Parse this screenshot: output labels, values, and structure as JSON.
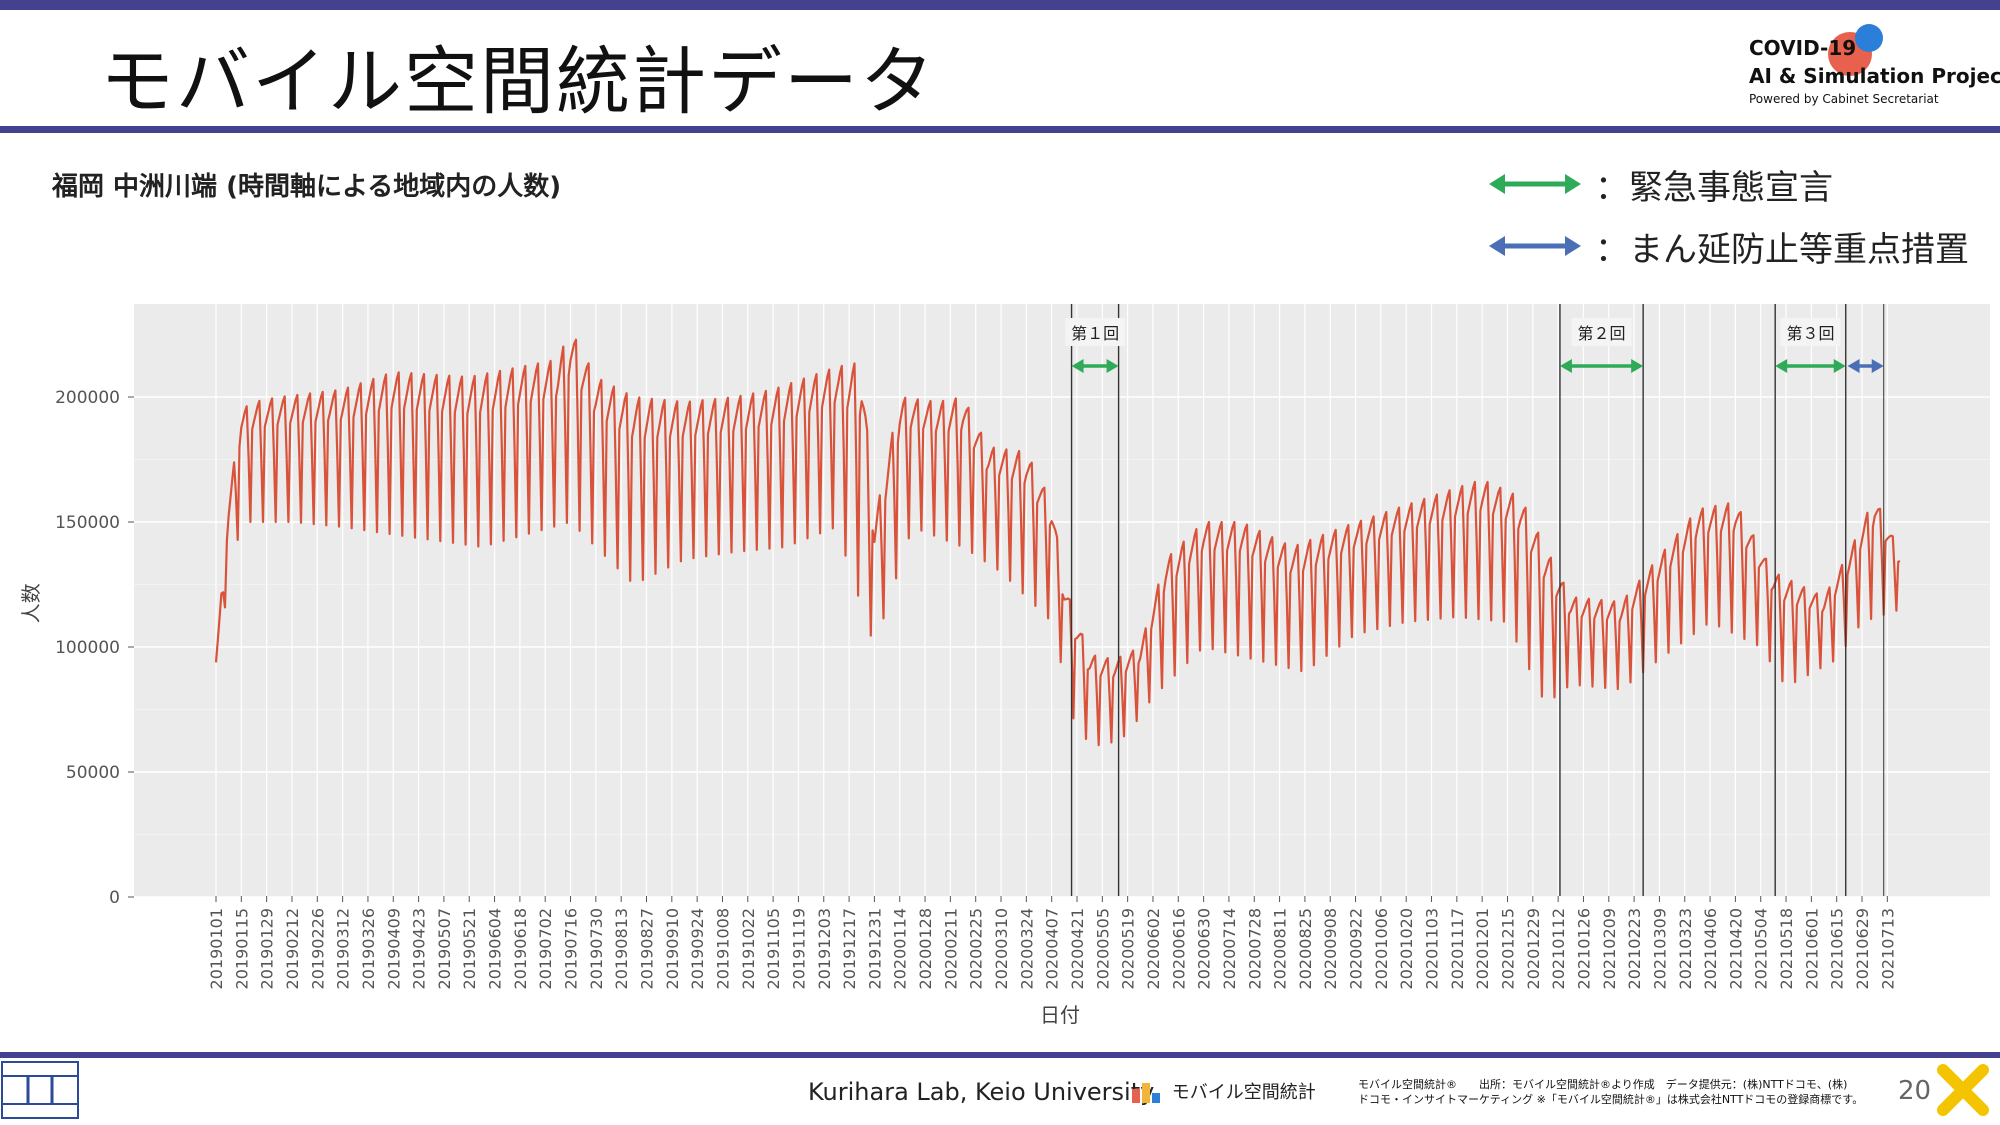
{
  "header": {
    "title": "モバイル空間統計データ",
    "logo": {
      "line1": "COVID-19",
      "line2": "AI & Simulation Project",
      "line3": "Powered by Cabinet Secretariat"
    }
  },
  "subtitle": "福岡 中洲川端 (時間軸による地域内の人数)",
  "legend": [
    {
      "label": "：緊急事態宣言",
      "color": "#2eaa59"
    },
    {
      "label": "：まん延防止等重点措置",
      "color": "#4a6fb5"
    }
  ],
  "footer": {
    "lab": "Kurihara Lab, Keio University",
    "mobile_logo": "モバイル空間統計",
    "note_line1": "モバイル空間統計®　　出所：モバイル空間統計®より作成　データ提供元：(株)NTTドコモ、(株)",
    "note_line2": "ドコモ・インサイトマーケティング ※「モバイル空間統計®」は株式会社NTTドコモの登録商標です。",
    "page_number": "20"
  },
  "chart_data": {
    "type": "line",
    "title": "",
    "xlabel": "日付",
    "ylabel": "人数",
    "ylim": [
      0,
      235000
    ],
    "yticks": [
      0,
      50000,
      100000,
      150000,
      200000
    ],
    "ytick_labels": [
      "0",
      "50000",
      "100000",
      "150000",
      "200000"
    ],
    "grid": true,
    "x_start": "20190101",
    "x_end": "20210720",
    "x_tick_labels": [
      "20190101",
      "20190115",
      "20190129",
      "20190212",
      "20190226",
      "20190312",
      "20190326",
      "20190409",
      "20190423",
      "20190507",
      "20190521",
      "20190604",
      "20190618",
      "20190702",
      "20190716",
      "20190730",
      "20190813",
      "20190827",
      "20190910",
      "20190924",
      "20191008",
      "20191022",
      "20191105",
      "20191119",
      "20191203",
      "20191217",
      "20191231",
      "20200114",
      "20200128",
      "20200211",
      "20200225",
      "20200310",
      "20200324",
      "20200407",
      "20200421",
      "20200505",
      "20200519",
      "20200602",
      "20200616",
      "20200630",
      "20200714",
      "20200728",
      "20200811",
      "20200825",
      "20200908",
      "20200922",
      "20201006",
      "20201020",
      "20201103",
      "20201117",
      "20201201",
      "20201215",
      "20201229",
      "20210112",
      "20210126",
      "20210209",
      "20210223",
      "20210309",
      "20210323",
      "20210406",
      "20210420",
      "20210504",
      "20210518",
      "20210601",
      "20210615",
      "20210629",
      "20210713"
    ],
    "series": [
      {
        "color": "#d9533b",
        "weekly_peaks": [
          [
            "20190101",
            94000
          ],
          [
            "20190108",
            158000
          ],
          [
            "20190115",
            195000
          ],
          [
            "20190122",
            198000
          ],
          [
            "20190205",
            200000
          ],
          [
            "20190312",
            203000
          ],
          [
            "20190409",
            210000
          ],
          [
            "20190521",
            208000
          ],
          [
            "20190618",
            212000
          ],
          [
            "20190709",
            215000
          ],
          [
            "20190716",
            227000
          ],
          [
            "20190730",
            208000
          ],
          [
            "20190820",
            200000
          ],
          [
            "20190917",
            198000
          ],
          [
            "20191015",
            200000
          ],
          [
            "20191105",
            203000
          ],
          [
            "20191210",
            212000
          ],
          [
            "20191224",
            214000
          ],
          [
            "20191231",
            150000
          ],
          [
            "20200114",
            200000
          ],
          [
            "20200204",
            198000
          ],
          [
            "20200218",
            200000
          ],
          [
            "20200303",
            180000
          ],
          [
            "20200324",
            178000
          ],
          [
            "20200407",
            158000
          ],
          [
            "20200414",
            125000
          ],
          [
            "20200428",
            97000
          ],
          [
            "20200512",
            95000
          ],
          [
            "20200526",
            100000
          ],
          [
            "20200609",
            135000
          ],
          [
            "20200630",
            150000
          ],
          [
            "20200721",
            150000
          ],
          [
            "20200818",
            140000
          ],
          [
            "20200915",
            148000
          ],
          [
            "20201013",
            155000
          ],
          [
            "20201110",
            162000
          ],
          [
            "20201201",
            167000
          ],
          [
            "20201222",
            160000
          ],
          [
            "20210105",
            140000
          ],
          [
            "20210119",
            120000
          ],
          [
            "20210216",
            118000
          ],
          [
            "20210302",
            130000
          ],
          [
            "20210330",
            155000
          ],
          [
            "20210420",
            158000
          ],
          [
            "20210511",
            130000
          ],
          [
            "20210608",
            120000
          ],
          [
            "20210622",
            138000
          ],
          [
            "20210706",
            160000
          ],
          [
            "20210720",
            138000
          ]
        ],
        "weekly_troughs": [
          [
            "20190101",
            93000
          ],
          [
            "20190108",
            125000
          ],
          [
            "20190115",
            150000
          ],
          [
            "20190212",
            150000
          ],
          [
            "20190312",
            148000
          ],
          [
            "20190409",
            145000
          ],
          [
            "20190528",
            140000
          ],
          [
            "20190716",
            150000
          ],
          [
            "20190820",
            125000
          ],
          [
            "20190917",
            135000
          ],
          [
            "20191015",
            138000
          ],
          [
            "20191112",
            140000
          ],
          [
            "20191210",
            148000
          ],
          [
            "20191231",
            100000
          ],
          [
            "20200121",
            148000
          ],
          [
            "20200218",
            140000
          ],
          [
            "20200310",
            130000
          ],
          [
            "20200407",
            110000
          ],
          [
            "20200421",
            65000
          ],
          [
            "20200505",
            60000
          ],
          [
            "20200519",
            65000
          ],
          [
            "20200602",
            80000
          ],
          [
            "20200630",
            100000
          ],
          [
            "20200728",
            95000
          ],
          [
            "20200825",
            90000
          ],
          [
            "20200922",
            105000
          ],
          [
            "20201020",
            110000
          ],
          [
            "20201117",
            112000
          ],
          [
            "20201215",
            110000
          ],
          [
            "20210105",
            77000
          ],
          [
            "20210119",
            85000
          ],
          [
            "20210216",
            83000
          ],
          [
            "20210309",
            95000
          ],
          [
            "20210406",
            110000
          ],
          [
            "20210504",
            100000
          ],
          [
            "20210518",
            84000
          ],
          [
            "20210615",
            95000
          ],
          [
            "20210629",
            110000
          ],
          [
            "20210720",
            115000
          ]
        ]
      }
    ],
    "annotations": [
      {
        "label": "第１回",
        "type": "緊急事態宣言",
        "start": "20200418",
        "end": "20200514",
        "color": "#2eaa59"
      },
      {
        "label": "第２回",
        "type": "緊急事態宣言",
        "start": "20210113",
        "end": "20210228",
        "color": "#2eaa59"
      },
      {
        "label": "第３回",
        "type": "緊急事態宣言",
        "start": "20210512",
        "end": "20210620",
        "color": "#2eaa59"
      },
      {
        "label": "",
        "type": "まん延防止等重点措置",
        "start": "20210621",
        "end": "20210711",
        "color": "#4a6fb5"
      }
    ]
  }
}
